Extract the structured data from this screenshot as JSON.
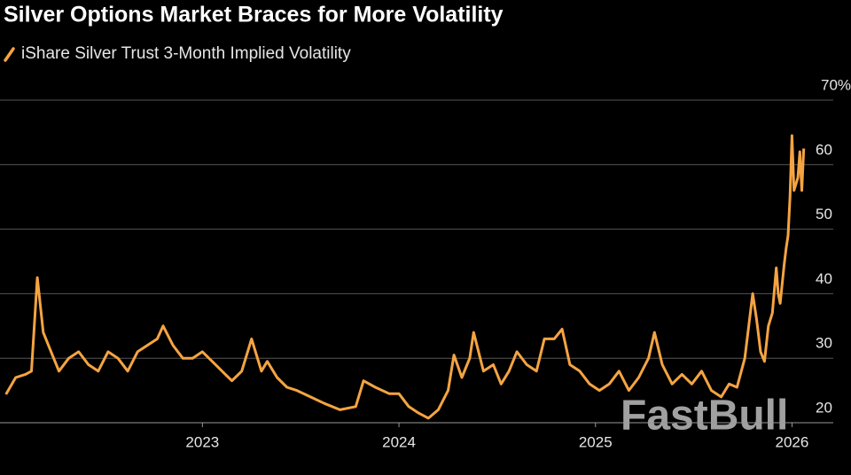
{
  "chart_data": {
    "type": "line",
    "title": "Silver Options Market Braces for More Volatility",
    "watermark": "FastBull",
    "x": [
      2022.0,
      2022.05,
      2022.1,
      2022.13,
      2022.16,
      2022.19,
      2022.23,
      2022.27,
      2022.32,
      2022.37,
      2022.42,
      2022.47,
      2022.52,
      2022.57,
      2022.62,
      2022.67,
      2022.72,
      2022.77,
      2022.8,
      2022.85,
      2022.9,
      2022.95,
      2023.0,
      2023.05,
      2023.1,
      2023.15,
      2023.2,
      2023.25,
      2023.3,
      2023.33,
      2023.38,
      2023.43,
      2023.48,
      2023.55,
      2023.62,
      2023.7,
      2023.78,
      2023.82,
      2023.88,
      2023.95,
      2024.0,
      2024.05,
      2024.1,
      2024.15,
      2024.2,
      2024.25,
      2024.28,
      2024.32,
      2024.36,
      2024.38,
      2024.43,
      2024.48,
      2024.52,
      2024.56,
      2024.6,
      2024.65,
      2024.7,
      2024.74,
      2024.79,
      2024.83,
      2024.87,
      2024.92,
      2024.97,
      2025.02,
      2025.07,
      2025.12,
      2025.17,
      2025.22,
      2025.27,
      2025.3,
      2025.34,
      2025.39,
      2025.44,
      2025.49,
      2025.54,
      2025.59,
      2025.64,
      2025.68,
      2025.72,
      2025.76,
      2025.8,
      2025.82,
      2025.84,
      2025.86,
      2025.88,
      2025.9,
      2025.92,
      2025.93,
      2025.94,
      2025.96,
      2025.97,
      2025.98,
      2025.99,
      2026.0,
      2026.01,
      2026.03,
      2026.04,
      2026.05,
      2026.06
    ],
    "series": [
      {
        "name": "iShare Silver Trust 3-Month Implied Volatility",
        "color": "#f5a442",
        "values": [
          24.4,
          27,
          27.5,
          28,
          42.5,
          34,
          31,
          28,
          30,
          31,
          29,
          28,
          31,
          30,
          28,
          31,
          32,
          33,
          35,
          32,
          30,
          30,
          31,
          29.5,
          28,
          26.5,
          28,
          33,
          28,
          29.5,
          27,
          25.5,
          25,
          24,
          23,
          22,
          22.5,
          26.5,
          25.5,
          24.5,
          24.5,
          22.5,
          21.5,
          20.7,
          22,
          25,
          30.5,
          27,
          30,
          34,
          28,
          29,
          26,
          28,
          31,
          29,
          28,
          33,
          33,
          34.5,
          29,
          28,
          26,
          25,
          26,
          28,
          25,
          27,
          30,
          34,
          29,
          26,
          27.5,
          26,
          28,
          25,
          24,
          26,
          25.5,
          30,
          40,
          36,
          31,
          29.5,
          35,
          37,
          44,
          40,
          38.5,
          44.5,
          47,
          49,
          55,
          64.5,
          56,
          58,
          62,
          56,
          62.5
        ]
      }
    ],
    "xlim": [
      2021.97,
      2026.21
    ],
    "xticks": [
      2023,
      2024,
      2025,
      2026
    ],
    "ylim": [
      20,
      70
    ],
    "yticks": [
      20,
      30,
      40,
      50,
      60,
      {
        "value": 70,
        "label": "70%"
      }
    ],
    "grid": true
  }
}
